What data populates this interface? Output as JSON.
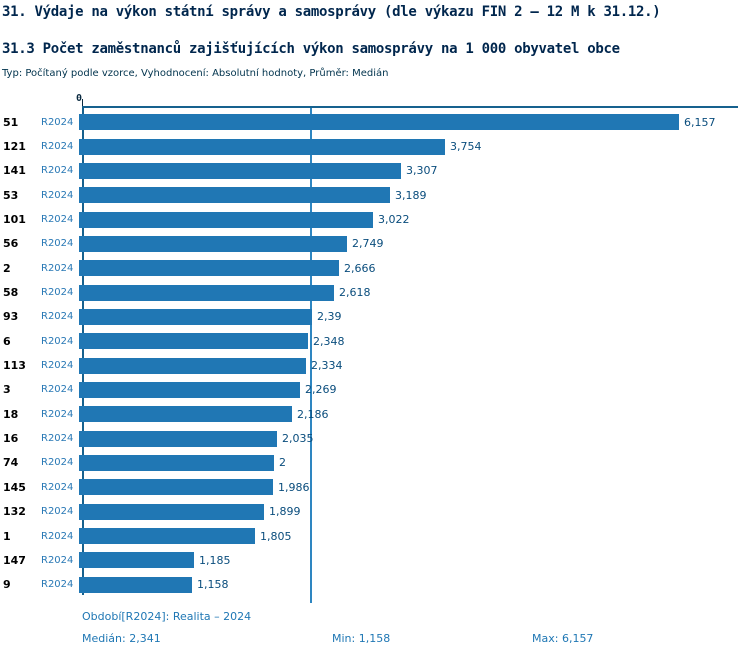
{
  "title": "31. Výdaje na výkon státní správy a samosprávy (dle výkazu FIN 2 – 12 M k 31.12.)",
  "subtitle": "31.3 Počet zaměstnanců zajišťujících výkon samosprávy na 1 000 obyvatel obce",
  "meta": "Typ: Počítaný podle vzorce, Vyhodnocení: Absolutní hodnoty, Průměr: Medián",
  "colors": {
    "bar": "#2077b4",
    "axis": "#16618e",
    "median_line": "#2e86c1",
    "footer_text": "#1f77b4",
    "title_text": "#00264d"
  },
  "chart_data": {
    "type": "bar",
    "orientation": "horizontal",
    "axis_zero_label": "0",
    "categories": [
      "51",
      "121",
      "141",
      "53",
      "101",
      "56",
      "2",
      "58",
      "93",
      "6",
      "113",
      "3",
      "18",
      "16",
      "74",
      "145",
      "132",
      "1",
      "147",
      "9"
    ],
    "series": [
      {
        "name": "R2024",
        "values": [
          6.157,
          3.754,
          3.307,
          3.189,
          3.022,
          2.749,
          2.666,
          2.618,
          2.39,
          2.348,
          2.334,
          2.269,
          2.186,
          2.035,
          2,
          1.986,
          1.899,
          1.805,
          1.185,
          1.158
        ]
      }
    ],
    "value_labels": [
      "6,157",
      "3,754",
      "3,307",
      "3,189",
      "3,022",
      "2,749",
      "2,666",
      "2,618",
      "2,39",
      "2,348",
      "2,334",
      "2,269",
      "2,186",
      "2,035",
      "2",
      "1,986",
      "1,899",
      "1,805",
      "1,185",
      "1,158"
    ],
    "median": 2.341,
    "min": 1.158,
    "max": 6.157,
    "xlim": [
      0,
      6.72
    ],
    "legend_position": "none",
    "grid": false
  },
  "footer": {
    "period": "Období[R2024]: Realita – 2024",
    "median": "Medián: 2,341",
    "min": "Min: 1,158",
    "max": "Max: 6,157"
  }
}
